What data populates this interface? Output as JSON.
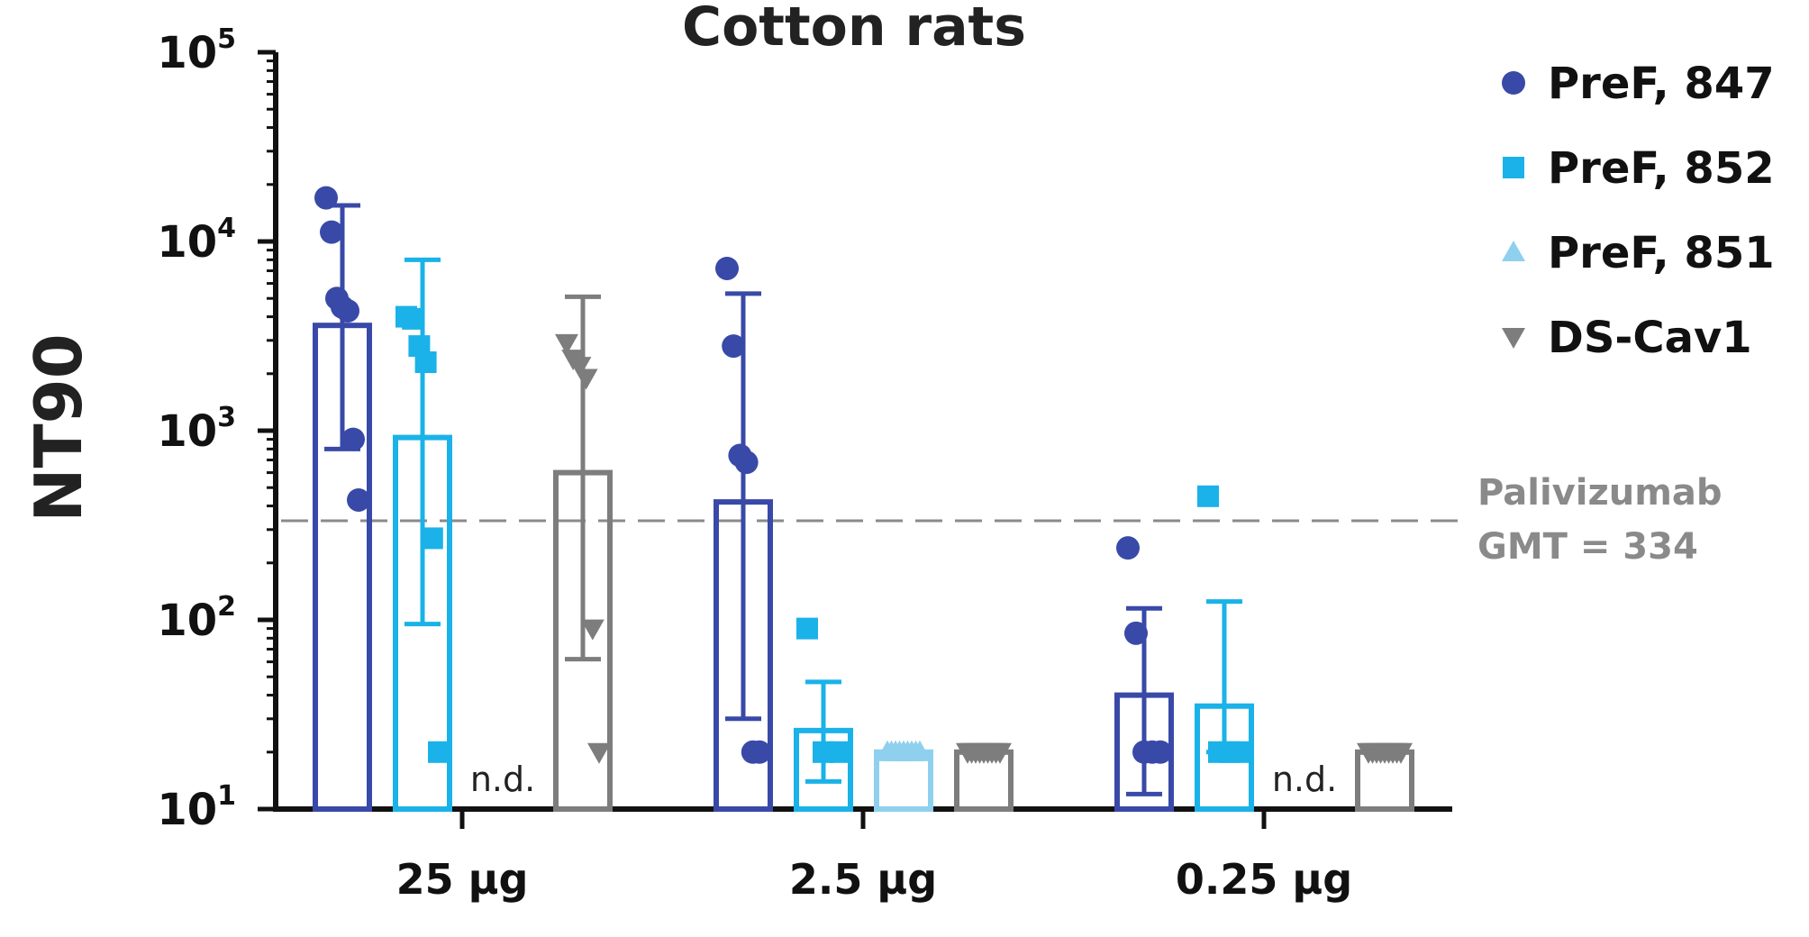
{
  "chart_data": {
    "type": "bar",
    "title": "Cotton rats",
    "ylabel": "NT90",
    "xlabel": "",
    "yscale": "log",
    "ylim": [
      10,
      100000
    ],
    "y_ticks": [
      {
        "value": 10,
        "base": "10",
        "exp": "1"
      },
      {
        "value": 100,
        "base": "10",
        "exp": "2"
      },
      {
        "value": 1000,
        "base": "10",
        "exp": "3"
      },
      {
        "value": 10000,
        "base": "10",
        "exp": "4"
      },
      {
        "value": 100000,
        "base": "10",
        "exp": "5"
      }
    ],
    "categories": [
      "25 µg",
      "2.5 µg",
      "0.25 µg"
    ],
    "legend_position": "top-right",
    "series": [
      {
        "name": "PreF, 847",
        "marker": "circle",
        "color": "#3949a8",
        "values": [
          3600,
          420,
          40
        ],
        "error_low": [
          800,
          30,
          12
        ],
        "error_high": [
          15500,
          5300,
          115
        ],
        "points": [
          [
            17000,
            11200,
            5000,
            4500,
            4300,
            900,
            430
          ],
          [
            7200,
            2800,
            740,
            680,
            20,
            20
          ],
          [
            240,
            85,
            20,
            20,
            20
          ]
        ]
      },
      {
        "name": "PreF, 852",
        "marker": "square",
        "color": "#1ab2e8",
        "values": [
          920,
          26,
          35
        ],
        "error_low": [
          95,
          14,
          20
        ],
        "error_high": [
          8000,
          47,
          125
        ],
        "points": [
          [
            4000,
            3900,
            2800,
            2300,
            270,
            20
          ],
          [
            90,
            20,
            20
          ],
          [
            450,
            20,
            20,
            20
          ]
        ]
      },
      {
        "name": "PreF, 851",
        "marker": "triangle-up",
        "color": "#8fd0ee",
        "values": [
          null,
          20,
          null
        ],
        "error_low": [
          null,
          null,
          null
        ],
        "error_high": [
          null,
          null,
          null
        ],
        "points": [
          [],
          [
            20,
            20,
            20,
            20,
            20,
            20,
            20,
            20,
            20
          ],
          []
        ]
      },
      {
        "name": "DS-Cav1",
        "marker": "triangle-down",
        "color": "#7d7d7d",
        "values": [
          600,
          20,
          20
        ],
        "error_low": [
          62,
          null,
          null
        ],
        "error_high": [
          5100,
          null,
          null
        ],
        "points": [
          [
            2900,
            2400,
            2200,
            1900,
            90,
            20
          ],
          [
            20,
            20,
            20,
            20,
            20,
            20,
            20,
            20,
            20
          ],
          [
            20,
            20,
            20,
            20,
            20,
            20,
            20,
            20,
            20
          ]
        ]
      }
    ],
    "not_determined": [
      {
        "category": "25 µg",
        "series": "PreF, 851",
        "label": "n.d."
      },
      {
        "category": "0.25 µg",
        "series": "PreF, 851",
        "label": "n.d."
      }
    ],
    "reference_line": {
      "value": 334,
      "label_line1": "Palivizumab",
      "label_line2": "GMT = 334",
      "color": "#8a8a8a",
      "style": "dashed"
    },
    "grid": false
  }
}
